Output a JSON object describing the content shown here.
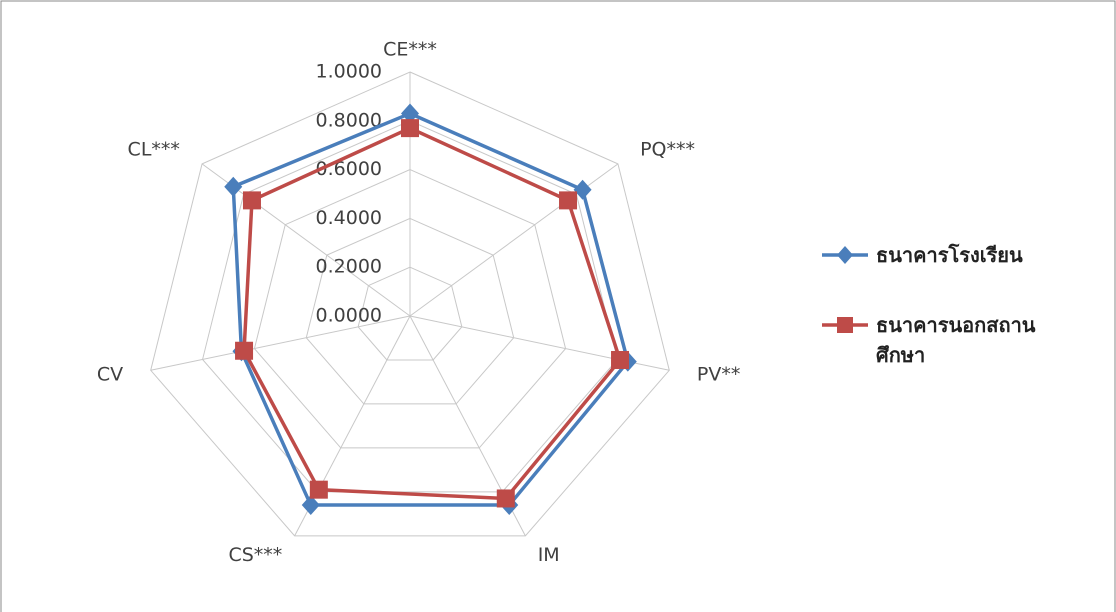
{
  "chart_data": {
    "type": "radar",
    "categories": [
      "CE***",
      "PQ***",
      "PV**",
      "IM",
      "CS***",
      "CV",
      "CL***"
    ],
    "series": [
      {
        "name": "ธนาคารโรงเรียน",
        "color": "#4a7ebb",
        "marker": "diamond",
        "values": [
          0.83,
          0.83,
          0.84,
          0.86,
          0.86,
          0.65,
          0.85
        ]
      },
      {
        "name": "ธนาคารนอกสถานศึกษา",
        "color": "#be4b48",
        "marker": "square",
        "values": [
          0.77,
          0.76,
          0.81,
          0.83,
          0.79,
          0.64,
          0.76
        ]
      }
    ],
    "rlim": [
      0,
      1
    ],
    "rticks": [
      {
        "value": 0,
        "label": "0.0000"
      },
      {
        "value": 0.2,
        "label": "0.2000"
      },
      {
        "value": 0.4,
        "label": "0.4000"
      },
      {
        "value": 0.6,
        "label": "0.6000"
      },
      {
        "value": 0.8,
        "label": "0.8000"
      },
      {
        "value": 1,
        "label": "1.0000"
      }
    ],
    "grid": true,
    "legend": "right"
  }
}
